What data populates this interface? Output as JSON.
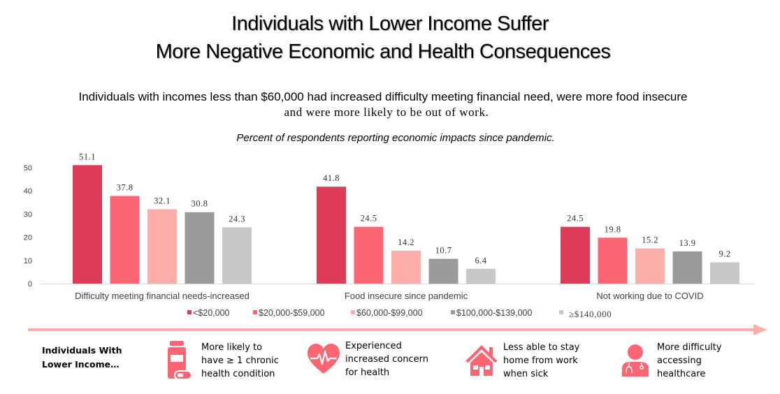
{
  "header": {
    "title_line1": "Individuals with Lower Income Suffer",
    "title_line2": "More Negative Economic and Health Consequences",
    "subtitle_line1": "Individuals with incomes less than $60,000 had increased difficulty meeting financial need, were more food insecure",
    "subtitle_line2": "and were more likely to be out of work.",
    "caption": "Percent of respondents reporting economic impacts since pandemic."
  },
  "chart_data": {
    "type": "bar",
    "title": "Percent of respondents reporting economic impacts since pandemic.",
    "xlabel": "",
    "ylabel": "",
    "ylim": [
      0,
      50
    ],
    "yticks": [
      "0",
      "10",
      "20",
      "30",
      "40",
      "50"
    ],
    "grid": false,
    "legend_position": "bottom",
    "categories": [
      "Difficulty meeting financial needs-increased",
      "Food insecure since pandemic",
      "Not working due to COVID"
    ],
    "series": [
      {
        "name": "<$20,000",
        "color": "#de3b58",
        "values": [
          51.1,
          41.8,
          24.5
        ],
        "labels": [
          "51.1",
          "41.8",
          "24.5"
        ]
      },
      {
        "name": "$20,000-$59,000",
        "color": "#fc6672",
        "values": [
          37.8,
          24.5,
          19.8
        ],
        "labels": [
          "37.8",
          "24.5",
          "19.8"
        ]
      },
      {
        "name": "$60,000-$99,000",
        "color": "#fdaeab",
        "values": [
          32.1,
          14.2,
          15.2
        ],
        "labels": [
          "32.1",
          "14.2",
          "15.2"
        ]
      },
      {
        "name": "$100,000-$139,000",
        "color": "#9a9a9a",
        "values": [
          30.8,
          10.7,
          13.9
        ],
        "labels": [
          "30.8",
          "10.7",
          "13.9"
        ]
      },
      {
        "name": "≥$140,000",
        "color": "#c8c8c8",
        "values": [
          24.3,
          6.4,
          9.2
        ],
        "labels": [
          "24.3",
          "6.4",
          "9.2"
        ]
      }
    ]
  },
  "colors": {
    "accent": "#fc6672",
    "arrow": "#fdaeab",
    "axis_line": "#d9d9d9",
    "value_label": "#333333",
    "axis_text": "#404040"
  },
  "footer": {
    "label": "Individuals With Lower Income…",
    "label_line1": "Individuals With",
    "label_line2": "Lower Income…",
    "features": [
      {
        "icon": "medicine-bottle-icon",
        "lines": [
          "More likely to",
          "have ≥ 1 chronic",
          "health condition"
        ]
      },
      {
        "icon": "heart-pulse-icon",
        "lines": [
          "Experienced",
          "increased concern",
          "for health"
        ]
      },
      {
        "icon": "house-icon",
        "lines": [
          "Less able to stay",
          "home from work",
          "when sick"
        ]
      },
      {
        "icon": "doctor-icon",
        "lines": [
          "More difficulty",
          "accessing",
          "healthcare"
        ]
      }
    ]
  }
}
